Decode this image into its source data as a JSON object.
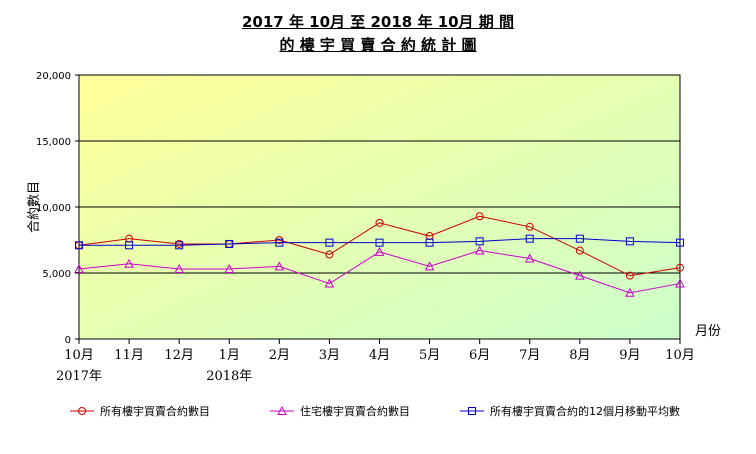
{
  "chart_data": {
    "type": "line",
    "title": "2017 年 10月 至  2018 年 10月 期  間",
    "subtitle": "的 樓 宇 買 賣 合 約 統 計 圖",
    "ylabel": "合約數目",
    "xlabel": "月份",
    "ylim": [
      0,
      20000
    ],
    "yticks": [
      "0",
      "5,000",
      "10,000",
      "15,000",
      "20,000"
    ],
    "ytick_values": [
      0,
      5000,
      10000,
      15000,
      20000
    ],
    "categories": [
      "10月",
      "11月",
      "12月",
      "1月",
      "2月",
      "3月",
      "4月",
      "5月",
      "6月",
      "7月",
      "8月",
      "9月",
      "10月"
    ],
    "year_labels": [
      {
        "index": 0,
        "label": "2017年"
      },
      {
        "index": 3,
        "label": "2018年"
      }
    ],
    "grid": true,
    "legend": "bottom",
    "series": [
      {
        "name": "所有樓宇買賣合約數目",
        "marker": "circle",
        "color": "#cc0000",
        "values": [
          7100,
          7600,
          7200,
          7200,
          7500,
          6400,
          8800,
          7800,
          9300,
          8500,
          6700,
          4800,
          5400
        ]
      },
      {
        "name": "住宅樓宇買賣合約數目",
        "marker": "triangle",
        "color": "#cc00cc",
        "values": [
          5300,
          5700,
          5300,
          5300,
          5500,
          4200,
          6600,
          5500,
          6700,
          6100,
          4800,
          3500,
          4200
        ]
      },
      {
        "name": "所有樓宇買賣合約的12個月移動平均數",
        "marker": "square",
        "color": "#0000cc",
        "values": [
          7100,
          7100,
          7100,
          7200,
          7300,
          7300,
          7300,
          7300,
          7400,
          7600,
          7600,
          7400,
          7300
        ]
      }
    ]
  }
}
